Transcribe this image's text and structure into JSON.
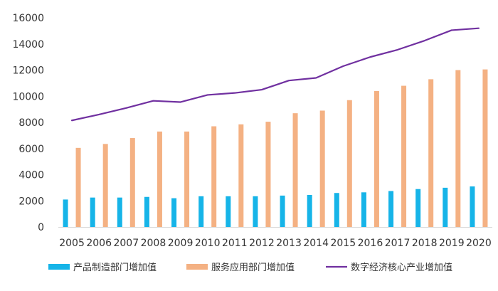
{
  "chart_data": {
    "type": "bar",
    "categories": [
      "2005",
      "2006",
      "2007",
      "2008",
      "2009",
      "2010",
      "2011",
      "2012",
      "2013",
      "2014",
      "2015",
      "2016",
      "2017",
      "2018",
      "2019",
      "2020"
    ],
    "ylim": [
      0,
      16000
    ],
    "yticks": [
      0,
      2000,
      4000,
      6000,
      8000,
      10000,
      12000,
      14000,
      16000
    ],
    "grid": false,
    "legend_position": "bottom",
    "series": [
      {
        "name": "产品制造部门增加值",
        "kind": "bar",
        "color": "#16b4e8",
        "values": [
          2100,
          2250,
          2250,
          2300,
          2200,
          2350,
          2350,
          2350,
          2400,
          2450,
          2600,
          2650,
          2750,
          2900,
          3000,
          3100
        ]
      },
      {
        "name": "服务应用部门增加值",
        "kind": "bar",
        "color": "#f4b183",
        "values": [
          6050,
          6350,
          6800,
          7300,
          7300,
          7700,
          7850,
          8050,
          8700,
          8900,
          9700,
          10400,
          10800,
          11300,
          12000,
          12050
        ]
      },
      {
        "name": "数字经济核心产业增加值",
        "kind": "line",
        "color": "#7030a0",
        "values": [
          8150,
          8600,
          9100,
          9650,
          9550,
          10100,
          10250,
          10500,
          11200,
          11400,
          12300,
          13000,
          13550,
          14250,
          15050,
          15200
        ]
      }
    ]
  }
}
